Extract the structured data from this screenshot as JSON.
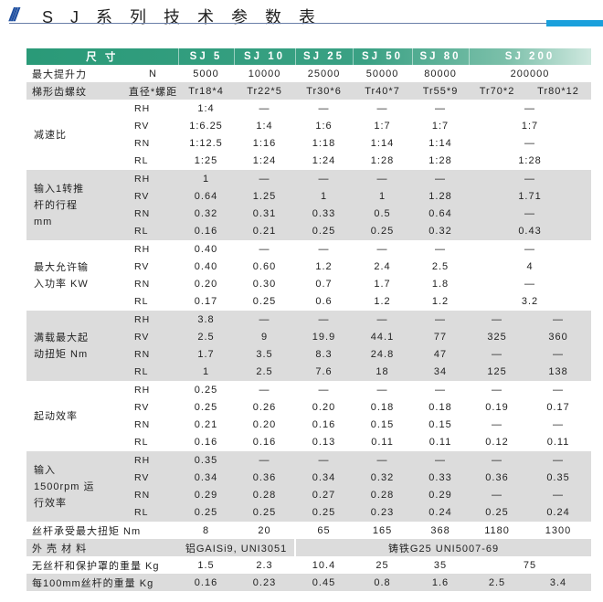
{
  "title": "S J 系 列 技 术 参 数 表",
  "title_icon": "triple-slash-icon",
  "colors": {
    "header": "#2a9a78",
    "gray_row": "#dcdcdc",
    "accent_bar": "#1aa0dc",
    "title_icon": "#1f4fa0"
  },
  "header": {
    "label": "尺    寸",
    "models": [
      "SJ 5",
      "SJ 10",
      "SJ 25",
      "SJ 50",
      "SJ 80",
      "SJ 200"
    ]
  },
  "rows_top": [
    {
      "label": "最大提升力",
      "unit": "N",
      "gray": false,
      "cells": [
        {
          "v": "5000"
        },
        {
          "v": "10000"
        },
        {
          "v": "25000"
        },
        {
          "v": "50000"
        },
        {
          "v": "80000"
        },
        {
          "v": "200000",
          "span": 2
        }
      ]
    },
    {
      "label": "梯形齿螺纹",
      "unit": "直径*螺距",
      "gray": true,
      "cells": [
        {
          "v": "Tr18*4"
        },
        {
          "v": "Tr22*5"
        },
        {
          "v": "Tr30*6"
        },
        {
          "v": "Tr40*7"
        },
        {
          "v": "Tr55*9"
        },
        {
          "v": "Tr70*2"
        },
        {
          "v": "Tr80*12"
        }
      ]
    }
  ],
  "blocks": [
    {
      "label": "减速比",
      "gray": false,
      "rows": [
        {
          "sub": "RH",
          "cells": [
            {
              "v": "1:4"
            },
            {
              "v": "—"
            },
            {
              "v": "—"
            },
            {
              "v": "—"
            },
            {
              "v": "—"
            },
            {
              "v": "—",
              "span": 2
            }
          ]
        },
        {
          "sub": "RV",
          "cells": [
            {
              "v": "1:6.25"
            },
            {
              "v": "1:4"
            },
            {
              "v": "1:6"
            },
            {
              "v": "1:7"
            },
            {
              "v": "1:7"
            },
            {
              "v": "1:7",
              "span": 2
            }
          ]
        },
        {
          "sub": "RN",
          "cells": [
            {
              "v": "1:12.5"
            },
            {
              "v": "1:16"
            },
            {
              "v": "1:18"
            },
            {
              "v": "1:14"
            },
            {
              "v": "1:14"
            },
            {
              "v": "—",
              "span": 2
            }
          ]
        },
        {
          "sub": "RL",
          "cells": [
            {
              "v": "1:25"
            },
            {
              "v": "1:24"
            },
            {
              "v": "1:24"
            },
            {
              "v": "1:28"
            },
            {
              "v": "1:28"
            },
            {
              "v": "1:28",
              "span": 2
            }
          ]
        }
      ]
    },
    {
      "label": "输入1转推\n杆的行程\n   mm",
      "gray": true,
      "rows": [
        {
          "sub": "RH",
          "cells": [
            {
              "v": "1"
            },
            {
              "v": "—"
            },
            {
              "v": "—"
            },
            {
              "v": "—"
            },
            {
              "v": "—"
            },
            {
              "v": "—",
              "span": 2
            }
          ]
        },
        {
          "sub": "RV",
          "cells": [
            {
              "v": "0.64"
            },
            {
              "v": "1.25"
            },
            {
              "v": "1"
            },
            {
              "v": "1"
            },
            {
              "v": "1.28"
            },
            {
              "v": "1.71",
              "span": 2
            }
          ]
        },
        {
          "sub": "RN",
          "cells": [
            {
              "v": "0.32"
            },
            {
              "v": "0.31"
            },
            {
              "v": "0.33"
            },
            {
              "v": "0.5"
            },
            {
              "v": "0.64"
            },
            {
              "v": "—",
              "span": 2
            }
          ]
        },
        {
          "sub": "RL",
          "cells": [
            {
              "v": "0.16"
            },
            {
              "v": "0.21"
            },
            {
              "v": "0.25"
            },
            {
              "v": "0.25"
            },
            {
              "v": "0.32"
            },
            {
              "v": "0.43",
              "span": 2
            }
          ]
        }
      ]
    },
    {
      "label": "最大允许输\n入功率 KW",
      "gray": false,
      "rows": [
        {
          "sub": "RH",
          "cells": [
            {
              "v": "0.40"
            },
            {
              "v": "—"
            },
            {
              "v": "—"
            },
            {
              "v": "—"
            },
            {
              "v": "—"
            },
            {
              "v": "—",
              "span": 2
            }
          ]
        },
        {
          "sub": "RV",
          "cells": [
            {
              "v": "0.40"
            },
            {
              "v": "0.60"
            },
            {
              "v": "1.2"
            },
            {
              "v": "2.4"
            },
            {
              "v": "2.5"
            },
            {
              "v": "4",
              "span": 2
            }
          ]
        },
        {
          "sub": "RN",
          "cells": [
            {
              "v": "0.20"
            },
            {
              "v": "0.30"
            },
            {
              "v": "0.7"
            },
            {
              "v": "1.7"
            },
            {
              "v": "1.8"
            },
            {
              "v": "—",
              "span": 2
            }
          ]
        },
        {
          "sub": "RL",
          "cells": [
            {
              "v": "0.17"
            },
            {
              "v": "0.25"
            },
            {
              "v": "0.6"
            },
            {
              "v": "1.2"
            },
            {
              "v": "1.2"
            },
            {
              "v": "3.2",
              "span": 2
            }
          ]
        }
      ]
    },
    {
      "label": "满载最大起\n动扭矩 Nm",
      "gray": true,
      "rows": [
        {
          "sub": "RH",
          "cells": [
            {
              "v": "3.8"
            },
            {
              "v": "—"
            },
            {
              "v": "—"
            },
            {
              "v": "—"
            },
            {
              "v": "—"
            },
            {
              "v": "—"
            },
            {
              "v": "—"
            }
          ]
        },
        {
          "sub": "RV",
          "cells": [
            {
              "v": "2.5"
            },
            {
              "v": "9"
            },
            {
              "v": "19.9"
            },
            {
              "v": "44.1"
            },
            {
              "v": "77"
            },
            {
              "v": "325"
            },
            {
              "v": "360"
            }
          ]
        },
        {
          "sub": "RN",
          "cells": [
            {
              "v": "1.7"
            },
            {
              "v": "3.5"
            },
            {
              "v": "8.3"
            },
            {
              "v": "24.8"
            },
            {
              "v": "47"
            },
            {
              "v": "—"
            },
            {
              "v": "—"
            }
          ]
        },
        {
          "sub": "RL",
          "cells": [
            {
              "v": "1"
            },
            {
              "v": "2.5"
            },
            {
              "v": "7.6"
            },
            {
              "v": "18"
            },
            {
              "v": "34"
            },
            {
              "v": "125"
            },
            {
              "v": "138"
            }
          ]
        }
      ]
    },
    {
      "label": "起动效率",
      "gray": false,
      "rows": [
        {
          "sub": "RH",
          "cells": [
            {
              "v": "0.25"
            },
            {
              "v": "—"
            },
            {
              "v": "—"
            },
            {
              "v": "—"
            },
            {
              "v": "—"
            },
            {
              "v": "—"
            },
            {
              "v": "—"
            }
          ]
        },
        {
          "sub": "RV",
          "cells": [
            {
              "v": "0.25"
            },
            {
              "v": "0.26"
            },
            {
              "v": "0.20"
            },
            {
              "v": "0.18"
            },
            {
              "v": "0.18"
            },
            {
              "v": "0.19"
            },
            {
              "v": "0.17"
            }
          ]
        },
        {
          "sub": "RN",
          "cells": [
            {
              "v": "0.21"
            },
            {
              "v": "0.20"
            },
            {
              "v": "0.16"
            },
            {
              "v": "0.15"
            },
            {
              "v": "0.15"
            },
            {
              "v": "—"
            },
            {
              "v": "—"
            }
          ]
        },
        {
          "sub": "RL",
          "cells": [
            {
              "v": "0.16"
            },
            {
              "v": "0.16"
            },
            {
              "v": "0.13"
            },
            {
              "v": "0.11"
            },
            {
              "v": "0.11"
            },
            {
              "v": "0.12"
            },
            {
              "v": "0.11"
            }
          ]
        }
      ]
    },
    {
      "label": "    输入\n1500rpm 运\n  行效率",
      "gray": true,
      "rows": [
        {
          "sub": "RH",
          "cells": [
            {
              "v": "0.35"
            },
            {
              "v": "—"
            },
            {
              "v": "—"
            },
            {
              "v": "—"
            },
            {
              "v": "—"
            },
            {
              "v": "—"
            },
            {
              "v": "—"
            }
          ]
        },
        {
          "sub": "RV",
          "cells": [
            {
              "v": "0.34"
            },
            {
              "v": "0.36"
            },
            {
              "v": "0.34"
            },
            {
              "v": "0.32"
            },
            {
              "v": "0.33"
            },
            {
              "v": "0.36"
            },
            {
              "v": "0.35"
            }
          ]
        },
        {
          "sub": "RN",
          "cells": [
            {
              "v": "0.29"
            },
            {
              "v": "0.28"
            },
            {
              "v": "0.27"
            },
            {
              "v": "0.28"
            },
            {
              "v": "0.29"
            },
            {
              "v": "—"
            },
            {
              "v": "—"
            }
          ]
        },
        {
          "sub": "RL",
          "cells": [
            {
              "v": "0.25"
            },
            {
              "v": "0.25"
            },
            {
              "v": "0.25"
            },
            {
              "v": "0.23"
            },
            {
              "v": "0.24"
            },
            {
              "v": "0.25"
            },
            {
              "v": "0.24"
            }
          ]
        }
      ]
    }
  ],
  "rows_bottom": [
    {
      "label": "丝杆承受最大扭矩 Nm",
      "gray": false,
      "cells": [
        {
          "v": "8"
        },
        {
          "v": "20"
        },
        {
          "v": "65"
        },
        {
          "v": "165"
        },
        {
          "v": "368"
        },
        {
          "v": "1180"
        },
        {
          "v": "1300"
        }
      ]
    },
    {
      "label": "外 壳 材 料",
      "gray": true,
      "cells": [
        {
          "v": "铝GAISi9, UNI3051",
          "span": 2
        },
        {
          "v": "铸铁G25 UNI5007-69",
          "span": 5,
          "divider": true
        }
      ]
    },
    {
      "label": "无丝杆和保护罩的重量 Kg",
      "gray": false,
      "cells": [
        {
          "v": "1.5"
        },
        {
          "v": "2.3"
        },
        {
          "v": "10.4"
        },
        {
          "v": "25"
        },
        {
          "v": "35"
        },
        {
          "v": "75",
          "span": 2
        }
      ]
    },
    {
      "label": "每100mm丝杆的重量 Kg",
      "gray": true,
      "cells": [
        {
          "v": "0.16"
        },
        {
          "v": "0.23"
        },
        {
          "v": "0.45"
        },
        {
          "v": "0.8"
        },
        {
          "v": "1.6"
        },
        {
          "v": "2.5"
        },
        {
          "v": "3.4"
        }
      ]
    }
  ]
}
